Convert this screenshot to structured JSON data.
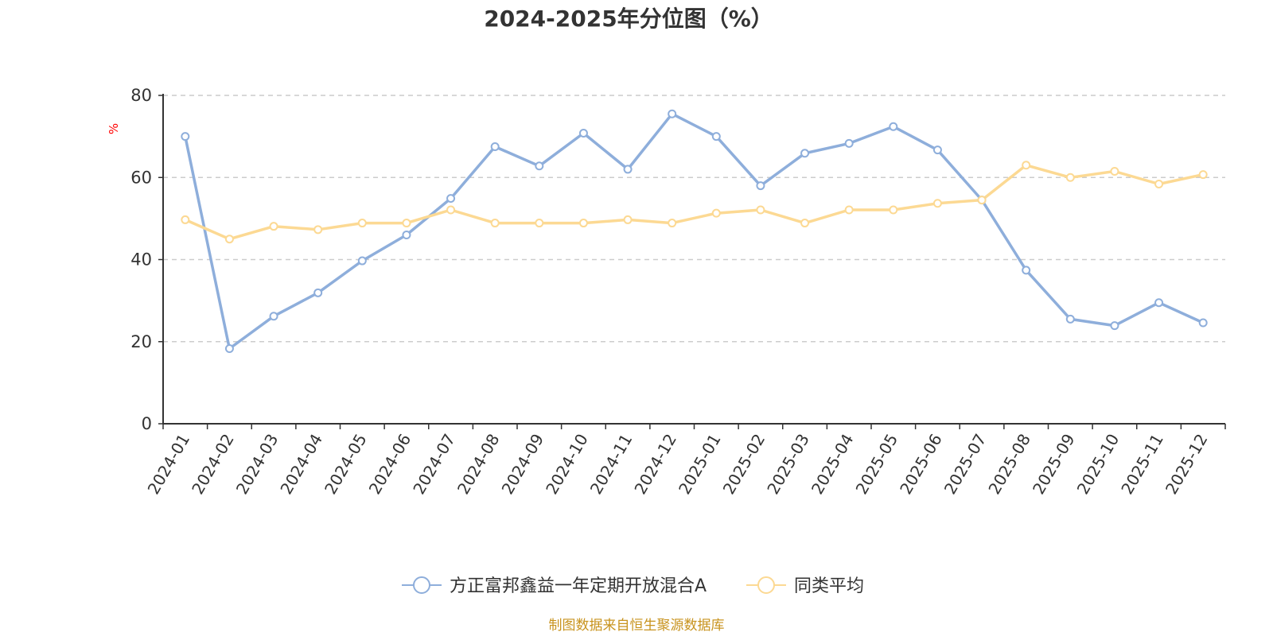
{
  "chart_data": {
    "type": "line",
    "title": "2024-2025年分位图（%）",
    "ylabel": "%",
    "ylim": [
      0,
      80
    ],
    "yticks": [
      0,
      20,
      40,
      60,
      80
    ],
    "grid": true,
    "legend_position": "bottom-center",
    "categories": [
      "2024-01",
      "2024-02",
      "2024-03",
      "2024-04",
      "2024-05",
      "2024-06",
      "2024-07",
      "2024-08",
      "2024-09",
      "2024-10",
      "2024-11",
      "2024-12",
      "2025-01",
      "2025-02",
      "2025-03",
      "2025-04",
      "2025-05",
      "2025-06",
      "2025-07",
      "2025-08",
      "2025-09",
      "2025-10",
      "2025-11",
      "2025-12"
    ],
    "series": [
      {
        "name": "方正富邦鑫益一年定期开放混合A",
        "color": "#8eaedb",
        "values": [
          70.0,
          18.3,
          26.2,
          31.9,
          39.7,
          46.0,
          54.9,
          67.5,
          62.8,
          70.8,
          62.0,
          75.5,
          70.0,
          58.0,
          65.9,
          68.3,
          72.4,
          66.7,
          54.5,
          37.4,
          25.5,
          23.9,
          29.5,
          24.6
        ]
      },
      {
        "name": "同类平均",
        "color": "#fcd993",
        "values": [
          49.7,
          45.0,
          48.1,
          47.3,
          48.9,
          48.9,
          52.1,
          48.9,
          48.9,
          48.9,
          49.7,
          48.9,
          51.3,
          52.1,
          48.9,
          52.1,
          52.1,
          53.7,
          54.5,
          63.0,
          60.0,
          61.5,
          58.4,
          60.7
        ]
      }
    ],
    "source": "制图数据来自恒生聚源数据库",
    "ylabel_color": "#ff0000",
    "source_color": "#c8931e",
    "axis_color": "#333333",
    "grid_color": "#cccccc"
  }
}
